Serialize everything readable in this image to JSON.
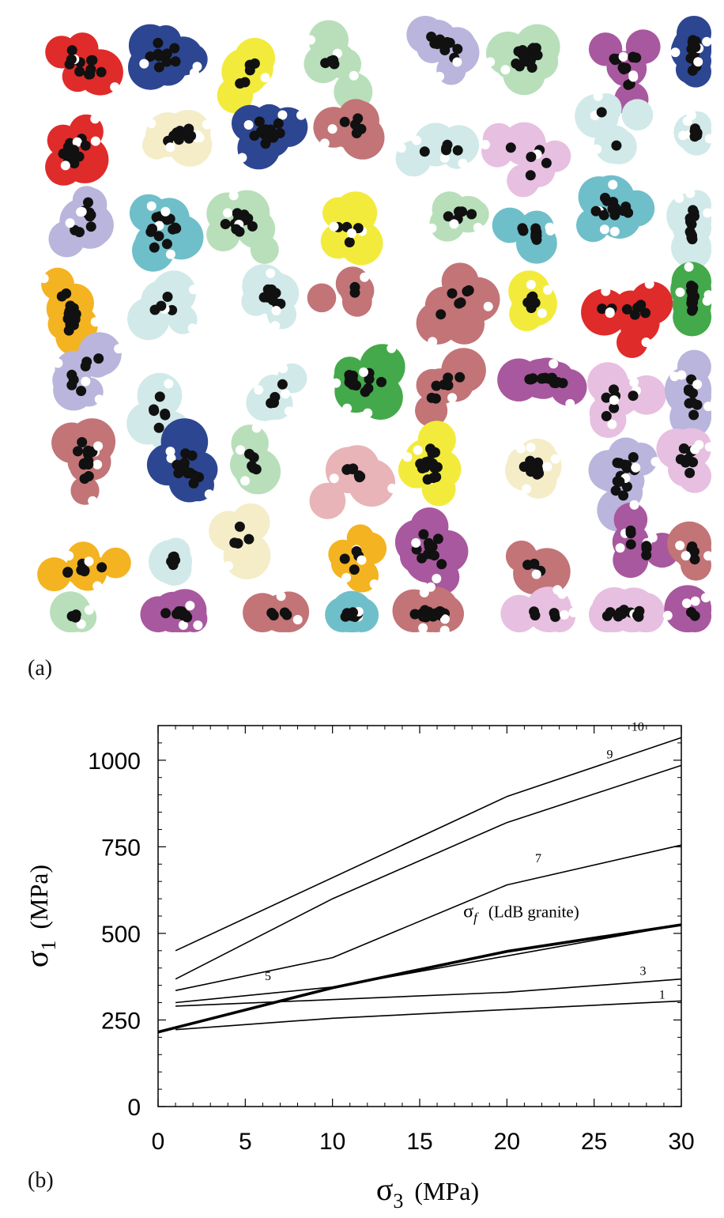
{
  "panel_a": {
    "label": "(a)",
    "palette": [
      "#e8b4b8",
      "#6fbfca",
      "#d1e9e9",
      "#c27477",
      "#a8589e",
      "#f4b321",
      "#2d4692",
      "#df2b2a",
      "#43a94a",
      "#b8dfba",
      "#f2eb3c",
      "#e7bfe0",
      "#b9b5dc",
      "#f5edc8"
    ]
  },
  "panel_b": {
    "label": "(b)",
    "chart_data": {
      "type": "line",
      "xlabel_symbol": "σ",
      "xlabel_sub": "3",
      "xlabel_unit": "(MPa)",
      "ylabel_symbol": "σ",
      "ylabel_sub": "1",
      "ylabel_unit": "(MPa)",
      "xlim": [
        0,
        30
      ],
      "ylim": [
        0,
        1100
      ],
      "xticks": [
        0,
        5,
        10,
        15,
        20,
        25,
        30
      ],
      "yticks": [
        0,
        250,
        500,
        750,
        1000
      ],
      "xtick_labels": [
        "0",
        "5",
        "10",
        "15",
        "20",
        "25",
        "30"
      ],
      "ytick_labels": [
        "0",
        "250",
        "500",
        "750",
        "1000"
      ],
      "grid": false,
      "series": [
        {
          "name": "10",
          "x": [
            1,
            20,
            30
          ],
          "y": [
            450,
            895,
            1065
          ]
        },
        {
          "name": "9",
          "x": [
            1,
            10,
            20,
            30
          ],
          "y": [
            368,
            600,
            820,
            985
          ]
        },
        {
          "name": "7",
          "x": [
            1,
            10,
            20,
            30
          ],
          "y": [
            335,
            430,
            640,
            755
          ]
        },
        {
          "name": "5",
          "x": [
            1,
            10,
            20,
            30
          ],
          "y": [
            300,
            345,
            435,
            525
          ]
        },
        {
          "name": "3",
          "x": [
            1,
            20,
            30
          ],
          "y": [
            290,
            330,
            368
          ]
        },
        {
          "name": "1",
          "x": [
            1,
            10,
            20,
            30
          ],
          "y": [
            222,
            255,
            280,
            305
          ]
        },
        {
          "name": "σf (LdB granite)",
          "x": [
            0,
            10,
            20,
            30
          ],
          "y": [
            215,
            343,
            448,
            525
          ]
        }
      ],
      "annotations": [
        {
          "text": "10",
          "x": 27.5,
          "y": 1085
        },
        {
          "text": "9",
          "x": 25.9,
          "y": 1005
        },
        {
          "text": "7",
          "x": 21.8,
          "y": 705
        },
        {
          "text": "5",
          "x": 6.3,
          "y": 365
        },
        {
          "text": "3",
          "x": 27.8,
          "y": 380
        },
        {
          "text": "1",
          "x": 28.9,
          "y": 312
        }
      ],
      "sigma_f_label": {
        "symbol": "σ",
        "sub": "f",
        "text": "(LdB granite)",
        "x": 17.5,
        "y": 547
      }
    }
  }
}
